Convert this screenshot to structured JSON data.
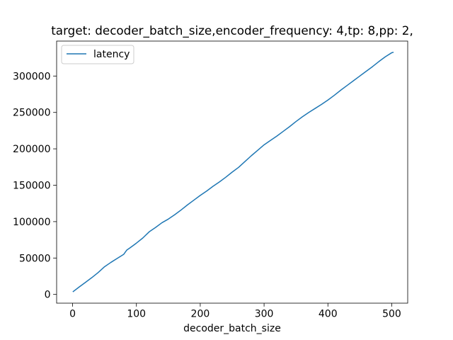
{
  "chart_data": {
    "type": "line",
    "title": "target: decoder_batch_size,encoder_frequency: 4,tp: 8,pp: 2,",
    "xlabel": "decoder_batch_size",
    "ylabel": "",
    "xlim": [
      -25,
      525
    ],
    "ylim": [
      -12000,
      348000
    ],
    "xticks": [
      0,
      100,
      200,
      300,
      400,
      500
    ],
    "yticks": [
      0,
      50000,
      100000,
      150000,
      200000,
      250000,
      300000
    ],
    "grid": false,
    "legend_position": "upper-left",
    "series": [
      {
        "name": "latency",
        "color": "#1f77b4",
        "x": [
          1,
          10,
          20,
          30,
          40,
          50,
          60,
          70,
          80,
          85,
          90,
          100,
          110,
          120,
          130,
          140,
          150,
          160,
          170,
          180,
          190,
          200,
          210,
          220,
          230,
          240,
          250,
          260,
          270,
          280,
          290,
          300,
          310,
          320,
          330,
          340,
          350,
          360,
          370,
          380,
          390,
          400,
          410,
          420,
          430,
          440,
          450,
          460,
          470,
          480,
          490,
          500,
          502
        ],
        "y": [
          4000,
          10000,
          16500,
          23000,
          30000,
          38000,
          44000,
          49500,
          55000,
          61000,
          64000,
          70500,
          77500,
          86000,
          92000,
          98500,
          103500,
          109500,
          116000,
          123000,
          129500,
          136000,
          142000,
          148500,
          154500,
          161000,
          168000,
          174500,
          182500,
          190500,
          198000,
          205500,
          211500,
          217500,
          224000,
          230500,
          237500,
          244000,
          250000,
          255500,
          261000,
          267000,
          273500,
          280500,
          287000,
          293500,
          300000,
          306500,
          313000,
          320000,
          326500,
          332000,
          332500
        ]
      }
    ]
  }
}
